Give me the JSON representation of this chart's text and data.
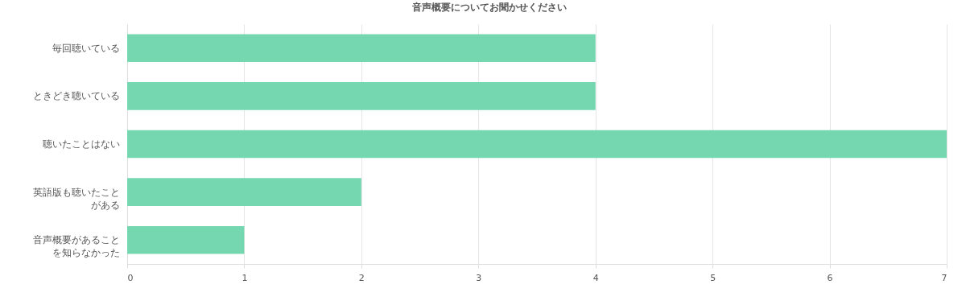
{
  "chart_data": {
    "type": "bar",
    "orientation": "horizontal",
    "title": "音声概要についてお聞かせください",
    "categories": [
      "毎回聴いている",
      "ときどき聴いている",
      "聴いたことはない",
      "英語版も聴いたことがある",
      "音声概要があることを知らなかった"
    ],
    "values": [
      4,
      4,
      7,
      2,
      1
    ],
    "color": "#74d7b0",
    "xlim": [
      0,
      7
    ],
    "xticks": [
      0,
      1,
      2,
      3,
      4,
      5,
      6,
      7
    ],
    "grid": "x"
  }
}
